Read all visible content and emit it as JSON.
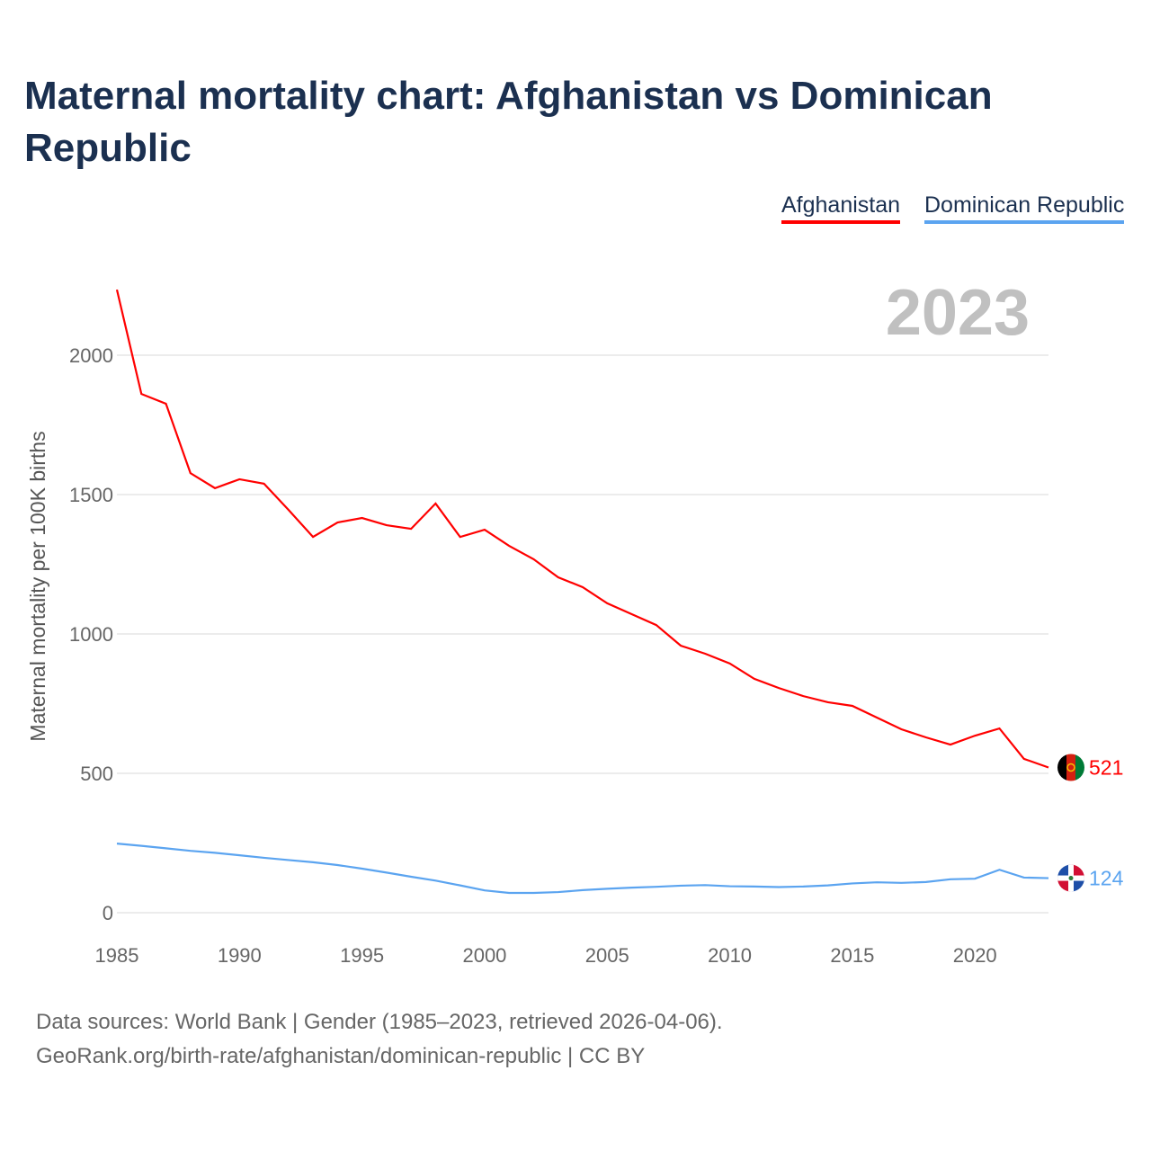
{
  "title": "Maternal mortality chart: Afghanistan vs Dominican Republic",
  "source_line1": "Data sources: World Bank | Gender (1985–2023, retrieved 2026-04-06).",
  "source_line2": "GeoRank.org/birth-rate/afghanistan/dominican-republic | CC BY",
  "chart_data": {
    "type": "line",
    "title": "Maternal mortality chart: Afghanistan vs Dominican Republic",
    "ylabel": "Maternal mortality per 100K births",
    "xlabel": "",
    "year_label": "2023",
    "ylim": [
      0,
      2250
    ],
    "xlim": [
      1985,
      2023
    ],
    "yticks": [
      "0",
      "500",
      "1000",
      "1500",
      "2000"
    ],
    "xticks": [
      "1985",
      "1990",
      "1995",
      "2000",
      "2005",
      "2010",
      "2015",
      "2020"
    ],
    "legend_position": "top-right",
    "x": [
      1985,
      1986,
      1987,
      1988,
      1989,
      1990,
      1991,
      1992,
      1993,
      1994,
      1995,
      1996,
      1997,
      1998,
      1999,
      2000,
      2001,
      2002,
      2003,
      2004,
      2005,
      2006,
      2007,
      2008,
      2009,
      2010,
      2011,
      2012,
      2013,
      2014,
      2015,
      2016,
      2017,
      2018,
      2019,
      2020,
      2021,
      2022,
      2023
    ],
    "series": [
      {
        "name": "Afghanistan",
        "color": "#ff0000",
        "end_label": "521",
        "flag": "afghanistan-flag",
        "values": [
          2235,
          1861,
          1826,
          1577,
          1523,
          1555,
          1539,
          1445,
          1348,
          1400,
          1416,
          1390,
          1377,
          1468,
          1348,
          1374,
          1316,
          1268,
          1203,
          1168,
          1110,
          1071,
          1032,
          958,
          929,
          894,
          839,
          806,
          777,
          755,
          742,
          700,
          658,
          629,
          603,
          635,
          661,
          552,
          521
        ]
      },
      {
        "name": "Dominican Republic",
        "color": "#5ba4f0",
        "end_label": "124",
        "flag": "dominican-republic-flag",
        "values": [
          248,
          240,
          231,
          222,
          215,
          206,
          197,
          189,
          181,
          171,
          158,
          144,
          129,
          115,
          98,
          80,
          71,
          71,
          74,
          81,
          86,
          90,
          93,
          97,
          99,
          95,
          94,
          92,
          94,
          98,
          105,
          109,
          107,
          110,
          120,
          122,
          154,
          126,
          124
        ]
      }
    ]
  }
}
